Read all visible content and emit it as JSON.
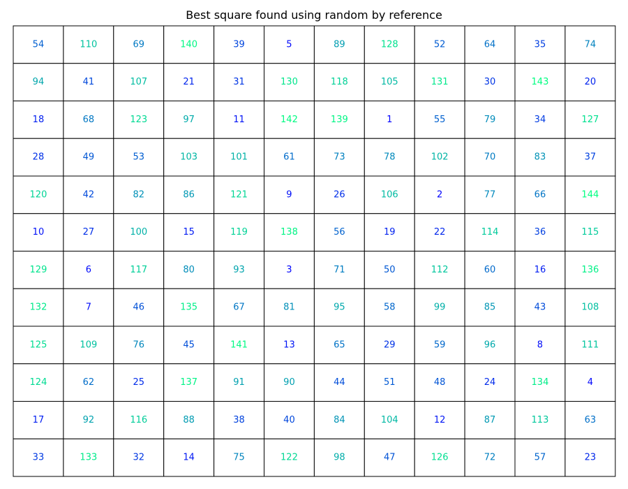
{
  "chart_data": {
    "type": "heatmap",
    "title": "Best square found using random by reference",
    "rows": 12,
    "cols": 12,
    "value_range": [
      1,
      144
    ],
    "colormap": {
      "low": "#0000ff",
      "high": "#00ff80"
    },
    "cell_border_color": "#000000",
    "grid": [
      [
        54,
        110,
        69,
        140,
        39,
        5,
        89,
        128,
        52,
        64,
        35,
        74
      ],
      [
        94,
        41,
        107,
        21,
        31,
        130,
        118,
        105,
        131,
        30,
        143,
        20
      ],
      [
        18,
        68,
        123,
        97,
        11,
        142,
        139,
        1,
        55,
        79,
        34,
        127
      ],
      [
        28,
        49,
        53,
        103,
        101,
        61,
        73,
        78,
        102,
        70,
        83,
        37
      ],
      [
        120,
        42,
        82,
        86,
        121,
        9,
        26,
        106,
        2,
        77,
        66,
        144
      ],
      [
        10,
        27,
        100,
        15,
        119,
        138,
        56,
        19,
        22,
        114,
        36,
        115
      ],
      [
        129,
        6,
        117,
        80,
        93,
        3,
        71,
        50,
        112,
        60,
        16,
        136
      ],
      [
        132,
        7,
        46,
        135,
        67,
        81,
        95,
        58,
        99,
        85,
        43,
        108
      ],
      [
        125,
        109,
        76,
        45,
        141,
        13,
        65,
        29,
        59,
        96,
        8,
        111
      ],
      [
        124,
        62,
        25,
        137,
        91,
        90,
        44,
        51,
        48,
        24,
        134,
        4
      ],
      [
        17,
        92,
        116,
        88,
        38,
        40,
        84,
        104,
        12,
        87,
        113,
        63
      ],
      [
        33,
        133,
        32,
        14,
        75,
        122,
        98,
        47,
        126,
        72,
        57,
        23
      ]
    ]
  }
}
